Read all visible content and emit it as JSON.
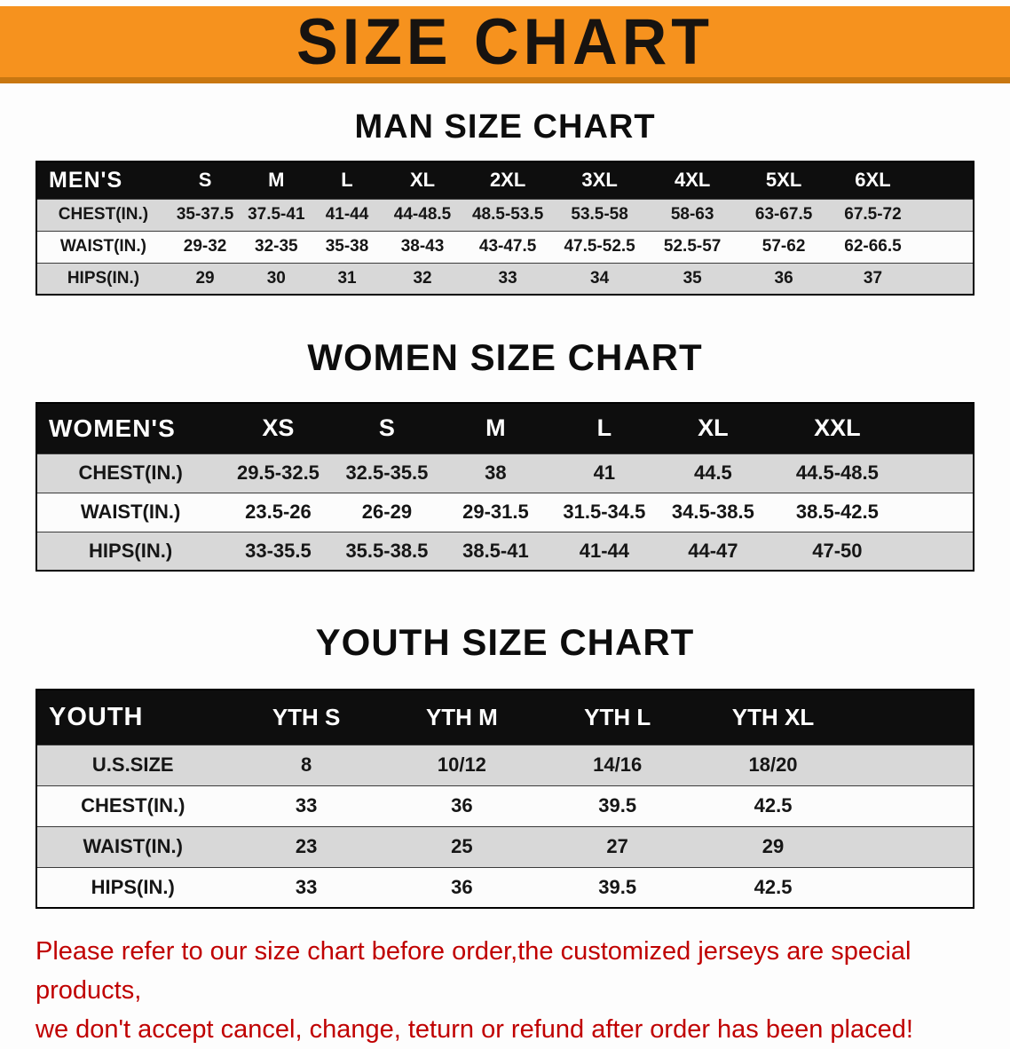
{
  "banner": {
    "title": "SIZE CHART"
  },
  "chart_data": [
    {
      "type": "table",
      "title": "MAN SIZE CHART",
      "header": [
        "MEN'S",
        "S",
        "M",
        "L",
        "XL",
        "2XL",
        "3XL",
        "4XL",
        "5XL",
        "6XL"
      ],
      "rows": [
        [
          "CHEST(IN.)",
          "35-37.5",
          "37.5-41",
          "41-44",
          "44-48.5",
          "48.5-53.5",
          "53.5-58",
          "58-63",
          "63-67.5",
          "67.5-72"
        ],
        [
          "WAIST(IN.)",
          "29-32",
          "32-35",
          "35-38",
          "38-43",
          "43-47.5",
          "47.5-52.5",
          "52.5-57",
          "57-62",
          "62-66.5"
        ],
        [
          "HIPS(IN.)",
          "29",
          "30",
          "31",
          "32",
          "33",
          "34",
          "35",
          "36",
          "37"
        ]
      ]
    },
    {
      "type": "table",
      "title": "WOMEN SIZE CHART",
      "header": [
        "WOMEN'S",
        "XS",
        "S",
        "M",
        "L",
        "XL",
        "XXL"
      ],
      "rows": [
        [
          "CHEST(IN.)",
          "29.5-32.5",
          "32.5-35.5",
          "38",
          "41",
          "44.5",
          "44.5-48.5"
        ],
        [
          "WAIST(IN.)",
          "23.5-26",
          "26-29",
          "29-31.5",
          "31.5-34.5",
          "34.5-38.5",
          "38.5-42.5"
        ],
        [
          "HIPS(IN.)",
          "33-35.5",
          "35.5-38.5",
          "38.5-41",
          "41-44",
          "44-47",
          "47-50"
        ]
      ]
    },
    {
      "type": "table",
      "title": "YOUTH SIZE CHART",
      "header": [
        "YOUTH",
        "YTH S",
        "YTH M",
        "YTH L",
        "YTH XL"
      ],
      "rows": [
        [
          "U.S.SIZE",
          "8",
          "10/12",
          "14/16",
          "18/20"
        ],
        [
          "CHEST(IN.)",
          "33",
          "36",
          "39.5",
          "42.5"
        ],
        [
          "WAIST(IN.)",
          "23",
          "25",
          "27",
          "29"
        ],
        [
          "HIPS(IN.)",
          "33",
          "36",
          "39.5",
          "42.5"
        ]
      ]
    }
  ],
  "footer": {
    "line1": "Please refer to our size chart before order,the customized jerseys are special products,",
    "line2": "we don't accept cancel, change, teturn or refund after order has been placed!"
  },
  "colors": {
    "banner_orange": "#f6921e",
    "banner_orange_dark": "#c87711",
    "table_header_black": "#0e0e0e",
    "stripe_gray": "#d8d8d8",
    "footer_red": "#c00000"
  }
}
